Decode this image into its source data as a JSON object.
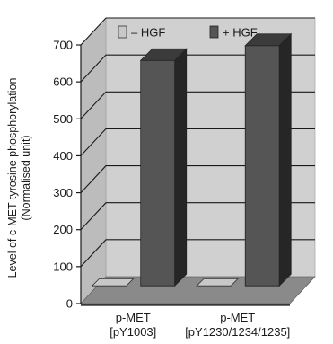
{
  "chart_data": {
    "type": "bar",
    "style": "3d-column",
    "categories": [
      [
        "p-MET",
        "[pY1003]"
      ],
      [
        "p-MET",
        "[pY1230/1234/1235]"
      ]
    ],
    "series": [
      {
        "name": "– HGF",
        "values": [
          0,
          0
        ],
        "color": "#c8c8c8"
      },
      {
        "name": "+ HGF",
        "values": [
          610,
          650
        ],
        "color": "#555555"
      }
    ],
    "yticks": [
      0,
      100,
      200,
      300,
      400,
      500,
      600,
      700
    ],
    "ylim": [
      0,
      700
    ],
    "ylabel": [
      "Level of c-MET tyrosine phosphorylation",
      "(Normalised unit)"
    ],
    "grid": true,
    "legend_position": "top",
    "colors": {
      "back_wall": "#d0d0d0",
      "side_wall": "#bcbcbc",
      "floor": "#8a8a8a",
      "grid": "#1a1a1a"
    }
  }
}
